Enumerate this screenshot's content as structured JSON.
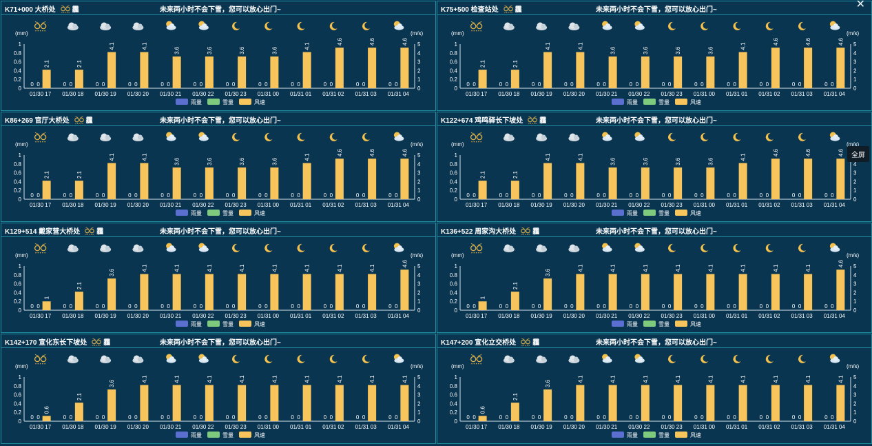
{
  "fog_label": "霾",
  "close_glyph": "✕",
  "tooltip_label": "全屏",
  "units": {
    "left": "(mm)",
    "right": "(m/s)"
  },
  "legend": [
    {
      "label": "雨量",
      "color": "#5b6fd1"
    },
    {
      "label": "雪量",
      "color": "#7ecb7e"
    },
    {
      "label": "风速",
      "color": "#f7c55b"
    }
  ],
  "colors": {
    "wind_bar": "#f7c55b",
    "panel_border": "#1f8ea0",
    "background": "#0a3550"
  },
  "times": [
    "01/30 17",
    "01/30 18",
    "01/30 19",
    "01/30 20",
    "01/30 21",
    "01/30 22",
    "01/30 23",
    "01/31 00",
    "01/31 01",
    "01/31 02",
    "01/31 03",
    "01/31 04"
  ],
  "weather_icons": [
    "fog-icon",
    "cloud-icon",
    "cloud-icon",
    "cloud-icon",
    "partly-cloudy-icon",
    "partly-cloudy-icon",
    "moon-icon",
    "moon-icon",
    "moon-icon",
    "moon-icon",
    "moon-icon",
    "partly-cloudy-icon"
  ],
  "panels": [
    {
      "location": "K71+000 大桥处",
      "message": "未来两小时不会下雪，您可以放心出门~"
    },
    {
      "location": "K75+500 检查站处",
      "message": "未来两小时不会下雪，您可以放心出门~"
    },
    {
      "location": "K86+269 官厅大桥处",
      "message": "未来两小时不会下雪，您可以放心出门~"
    },
    {
      "location": "K122+674 鸡鸣驿长下坡处",
      "message": "未来两小时不会下雪，您可以放心出门~"
    },
    {
      "location": "K129+514 戴家营大桥处",
      "message": "未来两小时不会下雪，您可以放心出门~"
    },
    {
      "location": "K136+522 周家沟大桥处",
      "message": "未来两小时不会下雪，您可以放心出门~"
    },
    {
      "location": "K142+170 宣化东长下坡处",
      "message": "未来两小时不会下雪，您可以放心出门~"
    },
    {
      "location": "K147+200 宣化立交桥处",
      "message": "未来两小时不会下雪，您可以放心出门~"
    }
  ],
  "chart_data": [
    {
      "type": "bar",
      "categories": [
        "01/30 17",
        "01/30 18",
        "01/30 19",
        "01/30 20",
        "01/30 21",
        "01/30 22",
        "01/30 23",
        "01/31 00",
        "01/31 01",
        "01/31 02",
        "01/31 03",
        "01/31 04"
      ],
      "series": [
        {
          "name": "雨量",
          "axis": "left",
          "values": [
            0,
            0,
            0,
            0,
            0,
            0,
            0,
            0,
            0,
            0,
            0,
            0
          ]
        },
        {
          "name": "雪量",
          "axis": "left",
          "values": [
            0,
            0,
            0,
            0,
            0,
            0,
            0,
            0,
            0,
            0,
            0,
            0
          ]
        },
        {
          "name": "风速",
          "axis": "right",
          "values": [
            2.1,
            2.1,
            4.1,
            4.1,
            3.6,
            3.6,
            3.6,
            3.6,
            4.1,
            4.6,
            4.6,
            4.6
          ]
        }
      ],
      "ylabel_left": "(mm)",
      "ylabel_right": "(m/s)",
      "ylim_left": [
        0,
        1
      ],
      "ylim_right": [
        0,
        5
      ],
      "left_ticks": [
        "0",
        "0.2",
        "0.4",
        "0.6",
        "0.8",
        "1"
      ],
      "right_ticks": [
        "0",
        "1",
        "2",
        "3",
        "4",
        "5"
      ],
      "legend_position": "bottom-center"
    },
    {
      "type": "bar",
      "categories": [
        "01/30 17",
        "01/30 18",
        "01/30 19",
        "01/30 20",
        "01/30 21",
        "01/30 22",
        "01/30 23",
        "01/31 00",
        "01/31 01",
        "01/31 02",
        "01/31 03",
        "01/31 04"
      ],
      "series": [
        {
          "name": "雨量",
          "axis": "left",
          "values": [
            0,
            0,
            0,
            0,
            0,
            0,
            0,
            0,
            0,
            0,
            0,
            0
          ]
        },
        {
          "name": "雪量",
          "axis": "left",
          "values": [
            0,
            0,
            0,
            0,
            0,
            0,
            0,
            0,
            0,
            0,
            0,
            0
          ]
        },
        {
          "name": "风速",
          "axis": "right",
          "values": [
            2.1,
            2.1,
            4.1,
            4.1,
            3.6,
            3.6,
            3.6,
            3.6,
            4.1,
            4.6,
            4.6,
            4.6
          ]
        }
      ],
      "ylabel_left": "(mm)",
      "ylabel_right": "(m/s)",
      "ylim_left": [
        0,
        1
      ],
      "ylim_right": [
        0,
        5
      ],
      "left_ticks": [
        "0",
        "0.2",
        "0.4",
        "0.6",
        "0.8",
        "1"
      ],
      "right_ticks": [
        "0",
        "1",
        "2",
        "3",
        "4",
        "5"
      ],
      "legend_position": "bottom-center"
    },
    {
      "type": "bar",
      "categories": [
        "01/30 17",
        "01/30 18",
        "01/30 19",
        "01/30 20",
        "01/30 21",
        "01/30 22",
        "01/30 23",
        "01/31 00",
        "01/31 01",
        "01/31 02",
        "01/31 03",
        "01/31 04"
      ],
      "series": [
        {
          "name": "雨量",
          "axis": "left",
          "values": [
            0,
            0,
            0,
            0,
            0,
            0,
            0,
            0,
            0,
            0,
            0,
            0
          ]
        },
        {
          "name": "雪量",
          "axis": "left",
          "values": [
            0,
            0,
            0,
            0,
            0,
            0,
            0,
            0,
            0,
            0,
            0,
            0
          ]
        },
        {
          "name": "风速",
          "axis": "right",
          "values": [
            2.1,
            2.1,
            4.1,
            4.1,
            3.6,
            3.6,
            3.6,
            3.6,
            4.1,
            4.6,
            4.6,
            4.6
          ]
        }
      ],
      "ylabel_left": "(mm)",
      "ylabel_right": "(m/s)",
      "ylim_left": [
        0,
        1
      ],
      "ylim_right": [
        0,
        5
      ],
      "left_ticks": [
        "0",
        "0.2",
        "0.4",
        "0.6",
        "0.8",
        "1"
      ],
      "right_ticks": [
        "0",
        "1",
        "2",
        "3",
        "4",
        "5"
      ],
      "legend_position": "bottom-center"
    },
    {
      "type": "bar",
      "categories": [
        "01/30 17",
        "01/30 18",
        "01/30 19",
        "01/30 20",
        "01/30 21",
        "01/30 22",
        "01/30 23",
        "01/31 00",
        "01/31 01",
        "01/31 02",
        "01/31 03",
        "01/31 04"
      ],
      "series": [
        {
          "name": "雨量",
          "axis": "left",
          "values": [
            0,
            0,
            0,
            0,
            0,
            0,
            0,
            0,
            0,
            0,
            0,
            0
          ]
        },
        {
          "name": "雪量",
          "axis": "left",
          "values": [
            0,
            0,
            0,
            0,
            0,
            0,
            0,
            0,
            0,
            0,
            0,
            0
          ]
        },
        {
          "name": "风速",
          "axis": "right",
          "values": [
            2.1,
            2.1,
            4.1,
            4.1,
            3.6,
            3.6,
            3.6,
            3.6,
            4.1,
            4.6,
            4.6,
            4.6
          ]
        }
      ],
      "ylabel_left": "(mm)",
      "ylabel_right": "(m/s)",
      "ylim_left": [
        0,
        1
      ],
      "ylim_right": [
        0,
        5
      ],
      "left_ticks": [
        "0",
        "0.2",
        "0.4",
        "0.6",
        "0.8",
        "1"
      ],
      "right_ticks": [
        "0",
        "1",
        "2",
        "3",
        "4",
        "5"
      ],
      "legend_position": "bottom-center"
    },
    {
      "type": "bar",
      "categories": [
        "01/30 17",
        "01/30 18",
        "01/30 19",
        "01/30 20",
        "01/30 21",
        "01/30 22",
        "01/30 23",
        "01/31 00",
        "01/31 01",
        "01/31 02",
        "01/31 03",
        "01/31 04"
      ],
      "series": [
        {
          "name": "雨量",
          "axis": "left",
          "values": [
            0,
            0,
            0,
            0,
            0,
            0,
            0,
            0,
            0,
            0,
            0,
            0
          ]
        },
        {
          "name": "雪量",
          "axis": "left",
          "values": [
            0,
            0,
            0,
            0,
            0,
            0,
            0,
            0,
            0,
            0,
            0,
            0
          ]
        },
        {
          "name": "风速",
          "axis": "right",
          "values": [
            1,
            2.1,
            3.6,
            4.1,
            4.1,
            4.1,
            4.1,
            4.1,
            4.1,
            4.1,
            4.1,
            4.6
          ]
        }
      ],
      "ylabel_left": "(mm)",
      "ylabel_right": "(m/s)",
      "ylim_left": [
        0,
        1
      ],
      "ylim_right": [
        0,
        5
      ],
      "left_ticks": [
        "0",
        "0.2",
        "0.4",
        "0.6",
        "0.8",
        "1"
      ],
      "right_ticks": [
        "0",
        "1",
        "2",
        "3",
        "4",
        "5"
      ],
      "legend_position": "bottom-center"
    },
    {
      "type": "bar",
      "categories": [
        "01/30 17",
        "01/30 18",
        "01/30 19",
        "01/30 20",
        "01/30 21",
        "01/30 22",
        "01/30 23",
        "01/31 00",
        "01/31 01",
        "01/31 02",
        "01/31 03",
        "01/31 04"
      ],
      "series": [
        {
          "name": "雨量",
          "axis": "left",
          "values": [
            0,
            0,
            0,
            0,
            0,
            0,
            0,
            0,
            0,
            0,
            0,
            0
          ]
        },
        {
          "name": "雪量",
          "axis": "left",
          "values": [
            0,
            0,
            0,
            0,
            0,
            0,
            0,
            0,
            0,
            0,
            0,
            0
          ]
        },
        {
          "name": "风速",
          "axis": "right",
          "values": [
            1,
            2.1,
            3.6,
            4.1,
            4.1,
            4.1,
            4.1,
            4.1,
            4.1,
            4.1,
            4.1,
            4.6
          ]
        }
      ],
      "ylabel_left": "(mm)",
      "ylabel_right": "(m/s)",
      "ylim_left": [
        0,
        1
      ],
      "ylim_right": [
        0,
        5
      ],
      "left_ticks": [
        "0",
        "0.2",
        "0.4",
        "0.6",
        "0.8",
        "1"
      ],
      "right_ticks": [
        "0",
        "1",
        "2",
        "3",
        "4",
        "5"
      ],
      "legend_position": "bottom-center"
    },
    {
      "type": "bar",
      "categories": [
        "01/30 17",
        "01/30 18",
        "01/30 19",
        "01/30 20",
        "01/30 21",
        "01/30 22",
        "01/30 23",
        "01/31 00",
        "01/31 01",
        "01/31 02",
        "01/31 03",
        "01/31 04"
      ],
      "series": [
        {
          "name": "雨量",
          "axis": "left",
          "values": [
            0,
            0,
            0,
            0,
            0,
            0,
            0,
            0,
            0,
            0,
            0,
            0
          ]
        },
        {
          "name": "雪量",
          "axis": "left",
          "values": [
            0,
            0,
            0,
            0,
            0,
            0,
            0,
            0,
            0,
            0,
            0,
            0
          ]
        },
        {
          "name": "风速",
          "axis": "right",
          "values": [
            0.6,
            2.1,
            3.6,
            4.1,
            4.1,
            4.1,
            4.1,
            4.1,
            4.1,
            4.1,
            4.1,
            4.1
          ]
        }
      ],
      "ylabel_left": "(mm)",
      "ylabel_right": "(m/s)",
      "ylim_left": [
        0,
        1
      ],
      "ylim_right": [
        0,
        5
      ],
      "left_ticks": [
        "0",
        "0.2",
        "0.4",
        "0.6",
        "0.8",
        "1"
      ],
      "right_ticks": [
        "0",
        "1",
        "2",
        "3",
        "4",
        "5"
      ],
      "legend_position": "bottom-center"
    },
    {
      "type": "bar",
      "categories": [
        "01/30 17",
        "01/30 18",
        "01/30 19",
        "01/30 20",
        "01/30 21",
        "01/30 22",
        "01/30 23",
        "01/31 00",
        "01/31 01",
        "01/31 02",
        "01/31 03",
        "01/31 04"
      ],
      "series": [
        {
          "name": "雨量",
          "axis": "left",
          "values": [
            0,
            0,
            0,
            0,
            0,
            0,
            0,
            0,
            0,
            0,
            0,
            0
          ]
        },
        {
          "name": "雪量",
          "axis": "left",
          "values": [
            0,
            0,
            0,
            0,
            0,
            0,
            0,
            0,
            0,
            0,
            0,
            0
          ]
        },
        {
          "name": "风速",
          "axis": "right",
          "values": [
            0.6,
            2.1,
            3.6,
            4.1,
            4.1,
            4.1,
            4.1,
            4.1,
            4.1,
            4.1,
            4.1,
            4.1
          ]
        }
      ],
      "ylabel_left": "(mm)",
      "ylabel_right": "(m/s)",
      "ylim_left": [
        0,
        1
      ],
      "ylim_right": [
        0,
        5
      ],
      "left_ticks": [
        "0",
        "0.2",
        "0.4",
        "0.6",
        "0.8",
        "1"
      ],
      "right_ticks": [
        "0",
        "1",
        "2",
        "3",
        "4",
        "5"
      ],
      "legend_position": "bottom-center"
    }
  ]
}
